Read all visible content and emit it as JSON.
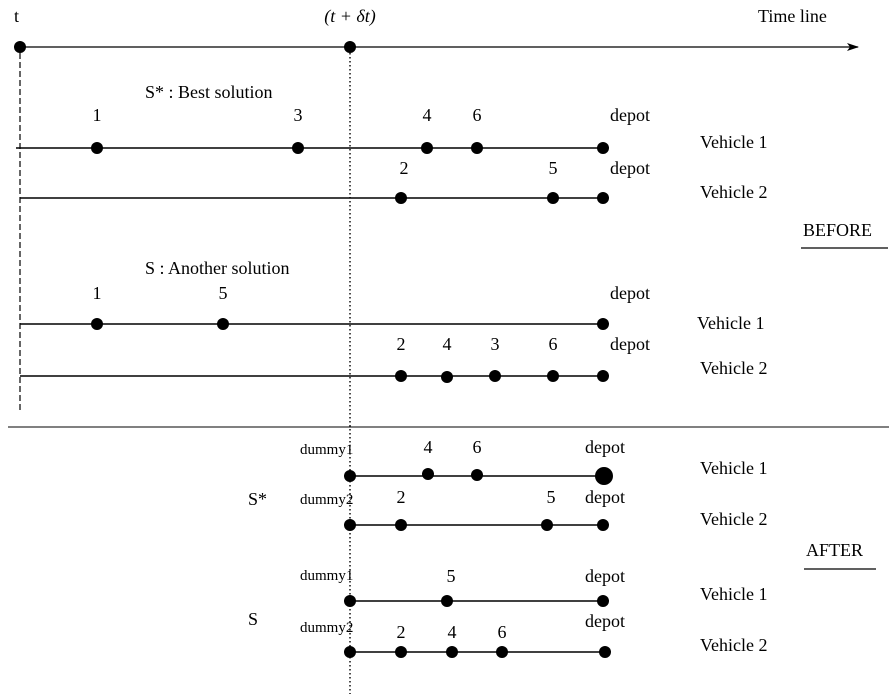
{
  "timeline": {
    "start_label": "t",
    "mid_label": "(t + δt)",
    "axis_label": "Time line"
  },
  "before": {
    "section_label": "BEFORE",
    "solutions": [
      {
        "title": "S* : Best solution",
        "routes": [
          {
            "vehicle_label": "Vehicle 1",
            "stops": [
              "1",
              "3",
              "4",
              "6",
              "depot"
            ]
          },
          {
            "vehicle_label": "Vehicle 2",
            "stops": [
              "2",
              "5",
              "depot"
            ]
          }
        ]
      },
      {
        "title": "S : Another solution",
        "routes": [
          {
            "vehicle_label": "Vehicle 1",
            "stops": [
              "1",
              "5",
              "depot"
            ]
          },
          {
            "vehicle_label": "Vehicle 2",
            "stops": [
              "2",
              "4",
              "3",
              "6",
              "depot"
            ]
          }
        ]
      }
    ]
  },
  "after": {
    "section_label": "AFTER",
    "solutions": [
      {
        "title": "S*",
        "routes": [
          {
            "vehicle_label": "Vehicle 1",
            "stops": [
              "dummy1",
              "4",
              "6",
              "depot"
            ]
          },
          {
            "vehicle_label": "Vehicle 2",
            "stops": [
              "dummy2",
              "2",
              "5",
              "depot"
            ]
          }
        ]
      },
      {
        "title": "S",
        "routes": [
          {
            "vehicle_label": "Vehicle 1",
            "stops": [
              "dummy1",
              "5",
              "depot"
            ]
          },
          {
            "vehicle_label": "Vehicle 2",
            "stops": [
              "dummy2",
              "2",
              "4",
              "6",
              "depot"
            ]
          }
        ]
      }
    ]
  }
}
